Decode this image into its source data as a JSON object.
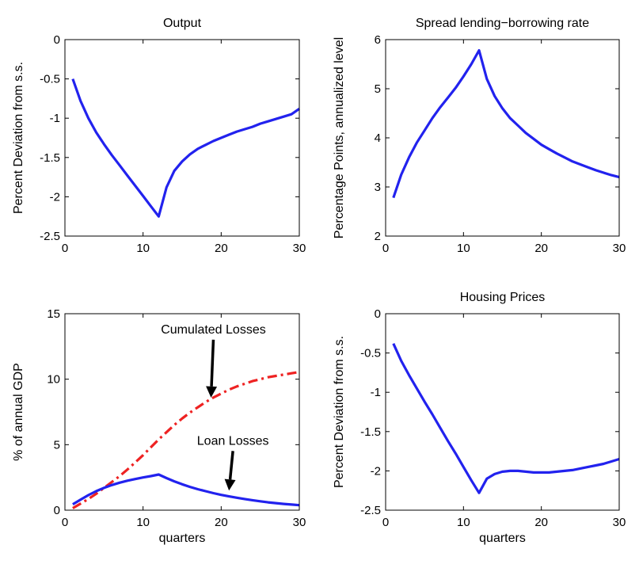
{
  "chart_data": [
    {
      "type": "line",
      "title": "Output",
      "xlabel": "",
      "ylabel": "Percent Deviation from s.s.",
      "xlim": [
        0,
        30
      ],
      "ylim": [
        -2.5,
        0
      ],
      "xticks": [
        0,
        10,
        20,
        30
      ],
      "yticks": [
        0,
        -0.5,
        -1,
        -1.5,
        -2,
        -2.5
      ],
      "xtick_labels": [
        "0",
        "10",
        "20",
        "30"
      ],
      "ytick_labels": [
        "0",
        "-0.5",
        "-1",
        "-1.5",
        "-2",
        "-2.5"
      ],
      "series": [
        {
          "color": "#2222ee",
          "style": "solid",
          "x": [
            1,
            2,
            3,
            4,
            5,
            6,
            7,
            8,
            9,
            10,
            11,
            12,
            13,
            14,
            15,
            16,
            17,
            18,
            19,
            20,
            21,
            22,
            23,
            24,
            25,
            26,
            27,
            28,
            29,
            30
          ],
          "y": [
            -0.5,
            -0.78,
            -1.0,
            -1.18,
            -1.33,
            -1.47,
            -1.6,
            -1.73,
            -1.86,
            -1.99,
            -2.12,
            -2.25,
            -1.88,
            -1.67,
            -1.55,
            -1.46,
            -1.39,
            -1.34,
            -1.29,
            -1.25,
            -1.21,
            -1.17,
            -1.14,
            -1.11,
            -1.07,
            -1.04,
            -1.01,
            -0.98,
            -0.95,
            -0.88
          ]
        }
      ]
    },
    {
      "type": "line",
      "title": "Spread lending−borrowing rate",
      "xlabel": "",
      "ylabel": "Percentage Points, annualized level",
      "xlim": [
        0,
        30
      ],
      "ylim": [
        2,
        6
      ],
      "xticks": [
        0,
        10,
        20,
        30
      ],
      "yticks": [
        2,
        3,
        4,
        5,
        6
      ],
      "xtick_labels": [
        "0",
        "10",
        "20",
        "30"
      ],
      "ytick_labels": [
        "2",
        "3",
        "4",
        "5",
        "6"
      ],
      "series": [
        {
          "color": "#2222ee",
          "style": "solid",
          "x": [
            1,
            2,
            3,
            4,
            5,
            6,
            7,
            8,
            9,
            10,
            11,
            12,
            13,
            14,
            15,
            16,
            17,
            18,
            19,
            20,
            21,
            22,
            23,
            24,
            25,
            26,
            27,
            28,
            29,
            30
          ],
          "y": [
            2.78,
            3.25,
            3.6,
            3.9,
            4.15,
            4.4,
            4.62,
            4.82,
            5.02,
            5.25,
            5.5,
            5.78,
            5.2,
            4.85,
            4.6,
            4.4,
            4.25,
            4.1,
            3.98,
            3.86,
            3.77,
            3.68,
            3.6,
            3.52,
            3.46,
            3.4,
            3.34,
            3.29,
            3.24,
            3.2
          ]
        }
      ]
    },
    {
      "type": "line",
      "title": "",
      "xlabel": "quarters",
      "ylabel": "% of annual GDP",
      "xlim": [
        0,
        30
      ],
      "ylim": [
        0,
        15
      ],
      "xticks": [
        0,
        10,
        20,
        30
      ],
      "yticks": [
        0,
        5,
        10,
        15
      ],
      "xtick_labels": [
        "0",
        "10",
        "20",
        "30"
      ],
      "ytick_labels": [
        "0",
        "5",
        "10",
        "15"
      ],
      "annotations": [
        {
          "text": "Cumulated Losses",
          "x": 19.0,
          "y": 13.5,
          "arrow_to": [
            18.7,
            8.6
          ]
        },
        {
          "text": "Loan Losses",
          "x": 21.5,
          "y": 5.0,
          "arrow_to": [
            21.0,
            1.5
          ]
        }
      ],
      "series": [
        {
          "name": "Cumulated Losses",
          "color": "#ee2222",
          "style": "dashdot",
          "x": [
            1,
            2,
            3,
            4,
            5,
            6,
            7,
            8,
            9,
            10,
            11,
            12,
            13,
            14,
            15,
            16,
            17,
            18,
            19,
            20,
            21,
            22,
            23,
            24,
            25,
            26,
            27,
            28,
            29,
            30
          ],
          "y": [
            0.15,
            0.5,
            0.85,
            1.25,
            1.7,
            2.15,
            2.6,
            3.1,
            3.65,
            4.2,
            4.8,
            5.4,
            5.95,
            6.5,
            7.0,
            7.45,
            7.85,
            8.25,
            8.6,
            8.9,
            9.2,
            9.45,
            9.65,
            9.85,
            10.0,
            10.15,
            10.25,
            10.35,
            10.45,
            10.55
          ]
        },
        {
          "name": "Loan Losses",
          "color": "#2222ee",
          "style": "solid",
          "x": [
            1,
            2,
            3,
            4,
            5,
            6,
            7,
            8,
            9,
            10,
            11,
            12,
            13,
            14,
            15,
            16,
            17,
            18,
            19,
            20,
            21,
            22,
            23,
            24,
            25,
            26,
            27,
            28,
            29,
            30
          ],
          "y": [
            0.45,
            0.8,
            1.15,
            1.45,
            1.7,
            1.92,
            2.1,
            2.25,
            2.38,
            2.5,
            2.6,
            2.72,
            2.45,
            2.2,
            1.98,
            1.78,
            1.6,
            1.45,
            1.3,
            1.17,
            1.05,
            0.95,
            0.85,
            0.76,
            0.68,
            0.6,
            0.54,
            0.48,
            0.43,
            0.38
          ]
        }
      ]
    },
    {
      "type": "line",
      "title": "Housing Prices",
      "xlabel": "quarters",
      "ylabel": "Percent Deviation from s.s.",
      "xlim": [
        0,
        30
      ],
      "ylim": [
        -2.5,
        0
      ],
      "xticks": [
        0,
        10,
        20,
        30
      ],
      "yticks": [
        0,
        -0.5,
        -1,
        -1.5,
        -2,
        -2.5
      ],
      "xtick_labels": [
        "0",
        "10",
        "20",
        "30"
      ],
      "ytick_labels": [
        "0",
        "-0.5",
        "-1",
        "-1.5",
        "-2",
        "-2.5"
      ],
      "series": [
        {
          "color": "#2222ee",
          "style": "solid",
          "x": [
            1,
            2,
            3,
            4,
            5,
            6,
            7,
            8,
            9,
            10,
            11,
            12,
            13,
            14,
            15,
            16,
            17,
            18,
            19,
            20,
            21,
            22,
            23,
            24,
            25,
            26,
            27,
            28,
            29,
            30
          ],
          "y": [
            -0.38,
            -0.6,
            -0.78,
            -0.95,
            -1.12,
            -1.28,
            -1.45,
            -1.62,
            -1.78,
            -1.95,
            -2.12,
            -2.28,
            -2.1,
            -2.04,
            -2.01,
            -2.0,
            -2.0,
            -2.01,
            -2.02,
            -2.02,
            -2.02,
            -2.01,
            -2.0,
            -1.99,
            -1.97,
            -1.95,
            -1.93,
            -1.91,
            -1.88,
            -1.85
          ]
        }
      ]
    }
  ]
}
